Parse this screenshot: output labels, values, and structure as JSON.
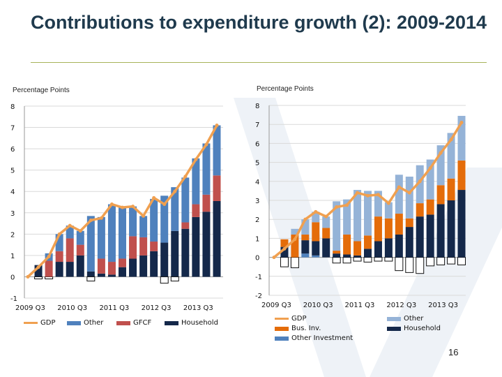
{
  "title": "Contributions to expenditure growth (2): 2009-2014",
  "page_number": "16",
  "chart_data": [
    {
      "type": "bar",
      "stacked": true,
      "ylabel": "Percentage Points",
      "ylim": [
        -1,
        8
      ],
      "yticks": [
        -1,
        0,
        1,
        2,
        3,
        4,
        5,
        6,
        7,
        8
      ],
      "grid": true,
      "legend": "bottom",
      "tick_labels": [
        "2009 Q3",
        "2010 Q3",
        "2011 Q3",
        "2012 Q3",
        "2013 Q3"
      ],
      "categories": [
        "2009 Q3",
        "2009 Q4",
        "2010 Q1",
        "2010 Q2",
        "2010 Q3",
        "2010 Q4",
        "2011 Q1",
        "2011 Q2",
        "2011 Q3",
        "2011 Q4",
        "2012 Q1",
        "2012 Q2",
        "2012 Q3",
        "2012 Q4",
        "2013 Q1",
        "2013 Q2",
        "2013 Q3",
        "2013 Q4",
        "2014 Q1"
      ],
      "series": [
        {
          "name": "GDP",
          "kind": "line",
          "color": "#f0a050",
          "values": [
            0,
            0.45,
            0.95,
            2.0,
            2.4,
            2.15,
            2.65,
            2.75,
            3.4,
            3.25,
            3.3,
            2.85,
            3.7,
            3.4,
            4.0,
            4.7,
            5.5,
            6.2,
            7.1
          ]
        },
        {
          "name": "Household",
          "kind": "bar",
          "color": "#14284a",
          "values": [
            null,
            0.55,
            -0.1,
            0.7,
            0.7,
            1.0,
            0.25,
            0.15,
            0.1,
            0.45,
            0.85,
            1.0,
            1.2,
            1.6,
            2.15,
            2.25,
            2.8,
            3.05,
            3.55
          ]
        },
        {
          "name": "GFCF",
          "kind": "bar",
          "color": "#c0504d",
          "values": [
            null,
            -0.1,
            0.75,
            0.5,
            1.1,
            0.5,
            -0.2,
            0.7,
            0.6,
            0.4,
            1.05,
            0.85,
            0.45,
            -0.3,
            -0.2,
            0.3,
            0.6,
            0.8,
            1.2
          ]
        },
        {
          "name": "Other",
          "kind": "bar",
          "color": "#4f81bd",
          "values": [
            null,
            0,
            0.35,
            0.8,
            0.6,
            0.65,
            2.6,
            1.95,
            2.7,
            2.4,
            1.4,
            1.0,
            2.0,
            2.2,
            2.05,
            2.1,
            2.15,
            2.4,
            2.35
          ]
        }
      ],
      "legend_order": [
        "GDP",
        "Other",
        "GFCF",
        "Household"
      ]
    },
    {
      "type": "bar",
      "stacked": true,
      "ylabel": "Percentage Points",
      "ylim": [
        -2,
        8
      ],
      "yticks": [
        -2,
        -1,
        0,
        1,
        2,
        3,
        4,
        5,
        6,
        7,
        8
      ],
      "grid": true,
      "legend": "bottom",
      "tick_labels": [
        "2009 Q3",
        "2010 Q3",
        "2011 Q3",
        "2012 Q3",
        "2013 Q3"
      ],
      "categories": [
        "2009 Q3",
        "2009 Q4",
        "2010 Q1",
        "2010 Q2",
        "2010 Q3",
        "2010 Q4",
        "2011 Q1",
        "2011 Q2",
        "2011 Q3",
        "2011 Q4",
        "2012 Q1",
        "2012 Q2",
        "2012 Q3",
        "2012 Q4",
        "2013 Q1",
        "2013 Q2",
        "2013 Q3",
        "2013 Q4",
        "2014 Q1"
      ],
      "series": [
        {
          "name": "GDP",
          "kind": "line",
          "color": "#f0a050",
          "values": [
            0,
            0.45,
            0.95,
            2.0,
            2.4,
            2.15,
            2.65,
            2.75,
            3.4,
            3.25,
            3.3,
            2.85,
            3.7,
            3.4,
            4.0,
            4.7,
            5.5,
            6.2,
            7.1
          ]
        },
        {
          "name": "Other Investment",
          "kind": "bar",
          "color": "#4f81bd",
          "values": [
            null,
            -0.5,
            -0.55,
            0.2,
            0.1,
            0,
            -0.3,
            -0.3,
            -0.2,
            -0.25,
            -0.2,
            -0.2,
            -0.7,
            -0.8,
            -0.85,
            -0.45,
            -0.4,
            -0.35,
            -0.4
          ]
        },
        {
          "name": "Household",
          "kind": "bar",
          "color": "#14284a",
          "values": [
            null,
            0.55,
            0,
            0.7,
            0.75,
            1.0,
            0.2,
            0.15,
            0.1,
            0.45,
            0.85,
            1.0,
            1.2,
            1.6,
            2.15,
            2.25,
            2.8,
            3.0,
            3.55
          ]
        },
        {
          "name": "Bus. Inv.",
          "kind": "bar",
          "color": "#e46c0a",
          "values": [
            null,
            0.4,
            1.2,
            0.3,
            1.0,
            0.55,
            0.15,
            1.05,
            0.75,
            0.7,
            1.3,
            1.05,
            1.1,
            0.45,
            0.7,
            0.8,
            1.0,
            1.15,
            1.55
          ]
        },
        {
          "name": "Other",
          "kind": "bar",
          "color": "#95b3d7",
          "values": [
            null,
            0,
            0.3,
            0.8,
            0.55,
            0.6,
            2.6,
            1.85,
            2.7,
            2.35,
            1.35,
            0.85,
            2.05,
            2.2,
            2.0,
            2.1,
            2.1,
            2.4,
            2.35
          ]
        }
      ],
      "legend_order": [
        "GDP",
        "Bus. Inv.",
        "Other Investment",
        "Other",
        "Household"
      ]
    }
  ]
}
